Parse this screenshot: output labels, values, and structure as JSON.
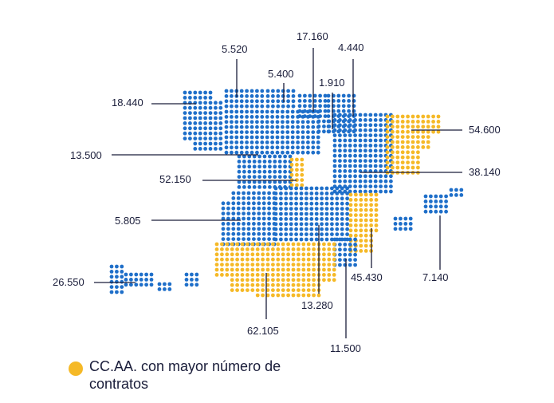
{
  "colors": {
    "base": "#1f6fc9",
    "highlight": "#f5b927",
    "text": "#1a1d3a",
    "leader": "#1a1d3a"
  },
  "legend": {
    "label": "CC.AA. con mayor número de contratos",
    "icon": "yellow-dot-icon"
  },
  "regions": [
    {
      "id": "galicia",
      "value": "18.440",
      "highlight": false
    },
    {
      "id": "asturias",
      "value": "5.520",
      "highlight": false
    },
    {
      "id": "cantabria",
      "value": "5.400",
      "highlight": false
    },
    {
      "id": "pais-vasco",
      "value": "17.160",
      "highlight": false
    },
    {
      "id": "la-rioja",
      "value": "1.910",
      "highlight": false
    },
    {
      "id": "navarra",
      "value": "4.440",
      "highlight": false
    },
    {
      "id": "cataluna",
      "value": "54.600",
      "highlight": true
    },
    {
      "id": "castilla-leon",
      "value": "13.500",
      "highlight": false
    },
    {
      "id": "madrid",
      "value": "52.150",
      "highlight": true
    },
    {
      "id": "aragon",
      "value": "38.140",
      "highlight": false
    },
    {
      "id": "extremadura",
      "value": "5.805",
      "highlight": false
    },
    {
      "id": "comunidad-valenciana",
      "value": "45.430",
      "highlight": true
    },
    {
      "id": "baleares",
      "value": "7.140",
      "highlight": false
    },
    {
      "id": "canarias",
      "value": "26.550",
      "highlight": false
    },
    {
      "id": "castilla-la-mancha",
      "value": "13.280",
      "highlight": false
    },
    {
      "id": "andalucia",
      "value": "62.105",
      "highlight": true
    },
    {
      "id": "murcia",
      "value": "11.500",
      "highlight": false
    }
  ]
}
